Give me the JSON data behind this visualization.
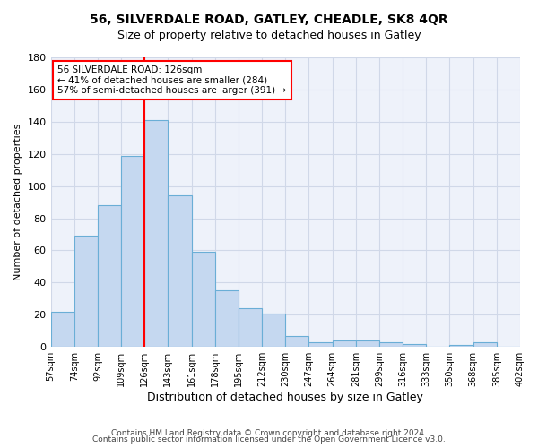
{
  "title": "56, SILVERDALE ROAD, GATLEY, CHEADLE, SK8 4QR",
  "subtitle": "Size of property relative to detached houses in Gatley",
  "xlabel": "Distribution of detached houses by size in Gatley",
  "ylabel": "Number of detached properties",
  "bar_labels": [
    "57sqm",
    "74sqm",
    "92sqm",
    "109sqm",
    "126sqm",
    "143sqm",
    "161sqm",
    "178sqm",
    "195sqm",
    "212sqm",
    "230sqm",
    "247sqm",
    "264sqm",
    "281sqm",
    "299sqm",
    "316sqm",
    "333sqm",
    "350sqm",
    "368sqm",
    "385sqm",
    "402sqm"
  ],
  "bar_values": [
    22,
    69,
    88,
    119,
    141,
    94,
    59,
    35,
    24,
    21,
    7,
    3,
    4,
    4,
    3,
    2,
    0,
    1,
    3,
    0
  ],
  "bar_color": "#c5d8f0",
  "bar_edge_color": "#6aaed6",
  "red_line_index": 4,
  "red_line_color": "red",
  "annotation_text": "56 SILVERDALE ROAD: 126sqm\n← 41% of detached houses are smaller (284)\n57% of semi-detached houses are larger (391) →",
  "annotation_box_color": "white",
  "annotation_box_edge": "red",
  "ylim": [
    0,
    180
  ],
  "yticks": [
    0,
    20,
    40,
    60,
    80,
    100,
    120,
    140,
    160,
    180
  ],
  "grid_color": "#d0d8e8",
  "background_color": "#eef2fa",
  "footer_line1": "Contains HM Land Registry data © Crown copyright and database right 2024.",
  "footer_line2": "Contains public sector information licensed under the Open Government Licence v3.0."
}
